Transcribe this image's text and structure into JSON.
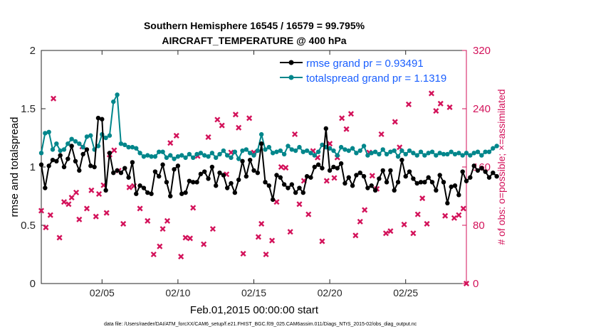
{
  "chart_data": {
    "type": "line",
    "title": "Southern Hemisphere 16545 / 16579 = 99.795%",
    "subtitle": "AIRCRAFT_TEMPERATURE @ 400 hPa",
    "xlabel": "Feb.01,2015 00:00:00 start",
    "ylabel_left": "rmse and totalspread",
    "ylabel_right": "# of obs: o=possible; ×=assimilated",
    "footnote": "data file: /Users/raeder/DAI/ATM_forcXX/CAM6_setup/f.e21.FHIST_BGC.f09_025.CAM6assim.011/Diags_NTrS_2015-02/obs_diag_output.nc",
    "x_ticks": [
      {
        "day": 5,
        "label": "02/05"
      },
      {
        "day": 10,
        "label": "02/10"
      },
      {
        "day": 15,
        "label": "02/15"
      },
      {
        "day": 20,
        "label": "02/20"
      },
      {
        "day": 25,
        "label": "02/25"
      }
    ],
    "xlim": [
      1,
      29
    ],
    "ylim_left": [
      0,
      2
    ],
    "ylim_right": [
      0,
      320
    ],
    "y_ticks_left": [
      "0",
      "0.5",
      "1",
      "1.5",
      "2"
    ],
    "y_ticks_right": [
      "0",
      "80",
      "160",
      "240",
      "320"
    ],
    "step_days": 0.25,
    "legend": [
      {
        "name": "rmse grand pr = 0.93491",
        "color": "#000000"
      },
      {
        "name": "totalspread grand pr = 1.1319",
        "color": "#00868b"
      }
    ],
    "series": [
      {
        "name": "rmse",
        "color": "#000000",
        "marker": "dot",
        "values": [
          1.02,
          0.82,
          1.01,
          1.06,
          1.05,
          1.1,
          1.0,
          1.07,
          1.18,
          1.05,
          0.97,
          1.11,
          1.15,
          1.01,
          1.0,
          1.42,
          1.41,
          0.8,
          1.12,
          0.95,
          0.97,
          0.95,
          0.99,
          0.91,
          1.04,
          0.77,
          0.84,
          0.82,
          0.78,
          0.77,
          0.96,
          0.92,
          1.02,
          0.87,
          0.75,
          0.98,
          1.01,
          0.77,
          0.78,
          0.88,
          0.87,
          0.87,
          0.94,
          0.96,
          0.9,
          1.0,
          0.84,
          0.95,
          0.93,
          0.82,
          0.86,
          0.78,
          0.89,
          1.05,
          0.92,
          1.06,
          0.97,
          0.95,
          1.2,
          0.87,
          0.84,
          0.72,
          0.93,
          0.91,
          0.85,
          0.82,
          0.85,
          0.78,
          0.82,
          0.78,
          0.92,
          0.91,
          1.0,
          1.02,
          0.99,
          1.33,
          0.97,
          1.0,
          0.99,
          1.03,
          0.86,
          0.91,
          0.84,
          0.93,
          0.95,
          0.92,
          0.82,
          0.84,
          0.8,
          0.9,
          0.97,
          0.87,
          0.97,
          0.8,
          0.87,
          1.06,
          0.92,
          0.96,
          0.9,
          0.86,
          0.87,
          0.87,
          0.91,
          0.87,
          0.8,
          0.93,
          0.87,
          0.69,
          0.83,
          0.84,
          0.76,
          0.96,
          0.88,
          0.91,
          1.01,
          0.97,
          0.99,
          0.96,
          0.91,
          0.95,
          0.92
        ]
      },
      {
        "name": "totalspread",
        "color": "#00868b",
        "marker": "dot",
        "values": [
          1.12,
          1.29,
          1.3,
          1.15,
          1.2,
          1.14,
          1.15,
          1.2,
          1.24,
          1.22,
          1.2,
          1.17,
          1.26,
          1.27,
          1.15,
          1.18,
          1.28,
          1.25,
          1.27,
          1.56,
          1.62,
          1.2,
          1.19,
          1.17,
          1.17,
          1.16,
          1.12,
          1.09,
          1.1,
          1.09,
          1.09,
          1.13,
          1.13,
          1.08,
          1.1,
          1.07,
          1.09,
          1.1,
          1.08,
          1.11,
          1.08,
          1.11,
          1.12,
          1.1,
          1.09,
          1.12,
          1.08,
          1.11,
          1.14,
          1.1,
          1.08,
          1.13,
          1.07,
          1.14,
          1.15,
          1.12,
          1.1,
          1.14,
          1.28,
          1.15,
          1.17,
          1.12,
          1.13,
          1.14,
          1.11,
          1.18,
          1.15,
          1.14,
          1.17,
          1.13,
          1.14,
          1.12,
          1.1,
          1.13,
          1.19,
          1.17,
          1.16,
          1.14,
          1.1,
          1.17,
          1.15,
          1.14,
          1.16,
          1.12,
          1.14,
          1.18,
          1.1,
          1.12,
          1.13,
          1.11,
          1.15,
          1.11,
          1.13,
          1.14,
          1.09,
          1.14,
          1.11,
          1.14,
          1.12,
          1.1,
          1.13,
          1.1,
          1.12,
          1.13,
          1.1,
          1.12,
          1.11,
          1.11,
          1.13,
          1.11,
          1.12,
          1.1,
          1.12,
          1.1,
          1.12,
          1.13,
          1.1,
          1.13,
          1.13,
          1.16,
          1.18
        ]
      },
      {
        "name": "# of obs assimilated",
        "axis": "right",
        "color": "#d3125a",
        "marker": "x",
        "x_days": [
          1.0,
          1.3,
          1.6,
          1.8,
          2.2,
          2.5,
          2.8,
          3.0,
          3.3,
          3.5,
          3.7,
          4.0,
          4.3,
          4.6,
          4.8,
          5.1,
          5.3,
          5.5,
          5.8,
          6.1,
          6.4,
          6.8,
          7.1,
          7.5,
          8.0,
          8.4,
          8.8,
          9.0,
          9.3,
          9.5,
          9.9,
          10.2,
          10.5,
          10.8,
          11.0,
          11.3,
          11.7,
          12.0,
          12.3,
          12.6,
          12.9,
          13.2,
          13.5,
          13.8,
          14.0,
          14.3,
          14.7,
          15.0,
          15.3,
          15.5,
          15.8,
          16.2,
          16.5,
          16.8,
          17.1,
          17.4,
          17.7,
          18.0,
          18.3,
          18.6,
          18.9,
          19.2,
          19.5,
          19.8,
          20.0,
          20.3,
          20.5,
          20.8,
          21.1,
          21.4,
          21.7,
          22.0,
          22.3,
          22.6,
          22.8,
          23.1,
          23.4,
          23.7,
          24.0,
          24.3,
          24.6,
          24.9,
          25.2,
          25.5,
          25.8,
          26.1,
          26.4,
          26.7,
          27.0,
          27.3,
          27.6,
          27.9,
          28.2,
          28.5,
          28.8,
          29.0
        ],
        "values": [
          100,
          77,
          94,
          254,
          63,
          112,
          109,
          118,
          125,
          88,
          188,
          103,
          128,
          92,
          123,
          135,
          97,
          177,
          183,
          155,
          82,
          132,
          134,
          103,
          86,
          40,
          51,
          75,
          86,
          193,
          203,
          37,
          63,
          62,
          104,
          175,
          54,
          201,
          75,
          225,
          217,
          150,
          180,
          232,
          214,
          41,
          227,
          180,
          64,
          82,
          40,
          59,
          112,
          160,
          159,
          71,
          205,
          109,
          141,
          95,
          182,
          173,
          58,
          141,
          192,
          145,
          173,
          227,
          212,
          233,
          66,
          85,
          101,
          180,
          148,
          130,
          205,
          69,
          72,
          222,
          187,
          81,
          246,
          69,
          95,
          117,
          82,
          261,
          237,
          247,
          93,
          242,
          90,
          94,
          103,
          0
        ]
      }
    ]
  }
}
